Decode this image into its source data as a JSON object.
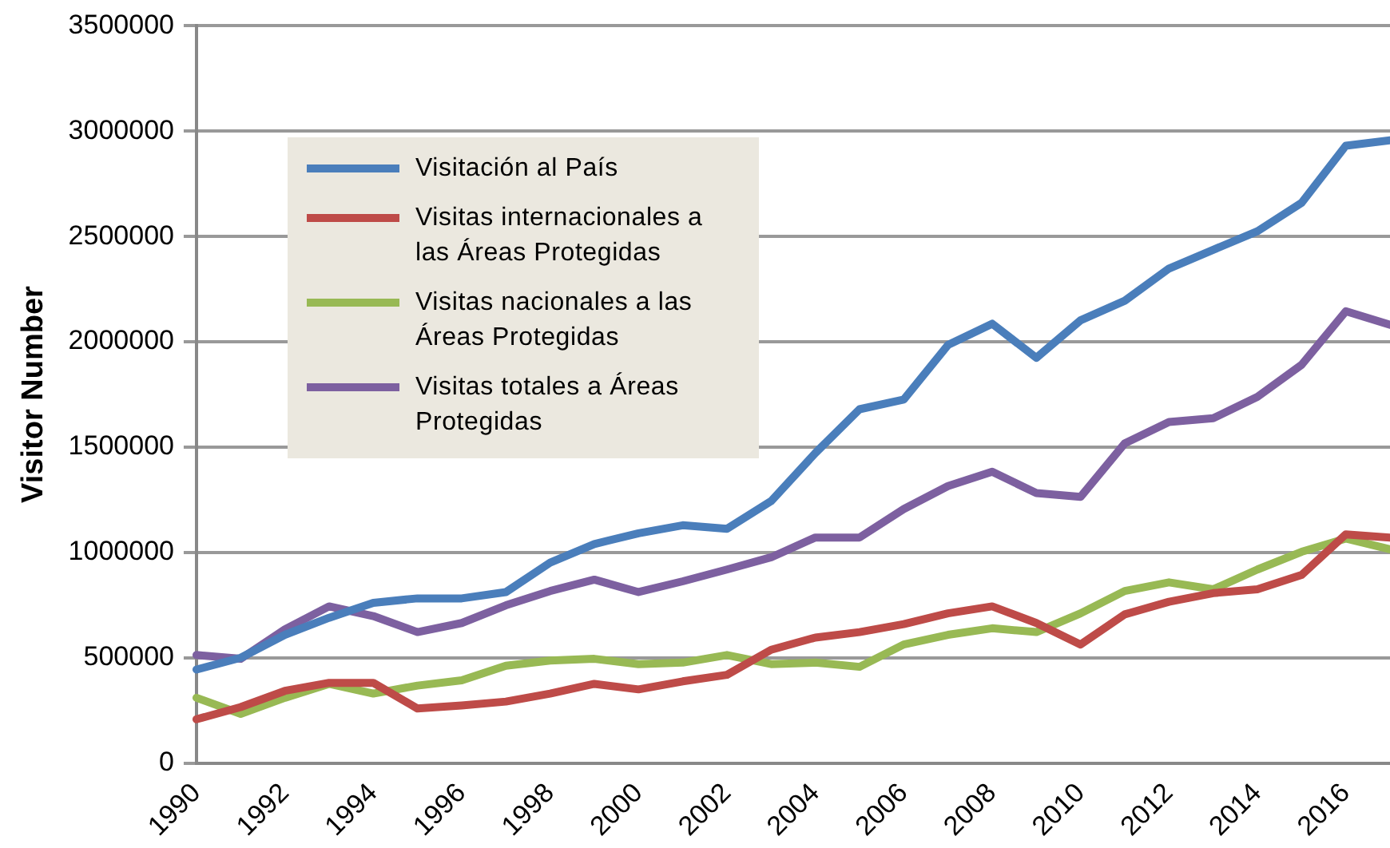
{
  "chart_data": {
    "type": "line",
    "ylabel": "Visitor Number",
    "x": [
      1990,
      1991,
      1992,
      1993,
      1994,
      1995,
      1996,
      1997,
      1998,
      1999,
      2000,
      2001,
      2002,
      2003,
      2004,
      2005,
      2006,
      2007,
      2008,
      2009,
      2010,
      2011,
      2012,
      2013,
      2014,
      2015,
      2016,
      2017
    ],
    "xlim": [
      1990,
      2017
    ],
    "xticks": [
      1990,
      1992,
      1994,
      1996,
      1998,
      2000,
      2002,
      2004,
      2006,
      2008,
      2010,
      2012,
      2014,
      2016
    ],
    "ylim": [
      0,
      3500000
    ],
    "yticks": [
      0,
      500000,
      1000000,
      1500000,
      2000000,
      2500000,
      3000000,
      3500000
    ],
    "grid": "y",
    "legend": "top left",
    "marker": "none",
    "line_style": "solid",
    "series": [
      {
        "name": "Visitación al País",
        "color": "#4a7ebb",
        "values": [
          444000,
          500000,
          609000,
          690000,
          761000,
          782000,
          782000,
          812000,
          952000,
          1040000,
          1091000,
          1129000,
          1112000,
          1244000,
          1472000,
          1680000,
          1726000,
          1985000,
          2086000,
          1924000,
          2102000,
          2195000,
          2348000,
          2437000,
          2525000,
          2660000,
          2931000,
          2957000
        ]
      },
      {
        "name": "Visitas internacionales a las Áreas Protegidas",
        "color": "#be4b48",
        "values": [
          208000,
          266000,
          343000,
          381000,
          381000,
          259000,
          274000,
          292000,
          330000,
          376000,
          350000,
          388000,
          419000,
          538000,
          596000,
          622000,
          660000,
          711000,
          744000,
          665000,
          563000,
          706000,
          766000,
          807000,
          825000,
          893000,
          1086000,
          1071000
        ]
      },
      {
        "name": "Visitas nacionales a las Áreas Protegidas",
        "color": "#98b954",
        "values": [
          310000,
          234000,
          310000,
          376000,
          330000,
          368000,
          393000,
          462000,
          487000,
          495000,
          470000,
          477000,
          513000,
          470000,
          477000,
          457000,
          563000,
          609000,
          640000,
          622000,
          711000,
          817000,
          858000,
          825000,
          919000,
          1003000,
          1066000,
          1015000
        ]
      },
      {
        "name": "Visitas totales a Áreas Protegidas",
        "color": "#7d60a0",
        "values": [
          513000,
          495000,
          635000,
          744000,
          698000,
          622000,
          665000,
          749000,
          817000,
          871000,
          812000,
          863000,
          919000,
          977000,
          1071000,
          1071000,
          1206000,
          1315000,
          1383000,
          1282000,
          1264000,
          1518000,
          1619000,
          1637000,
          1739000,
          1891000,
          2145000,
          2081000
        ]
      }
    ]
  }
}
